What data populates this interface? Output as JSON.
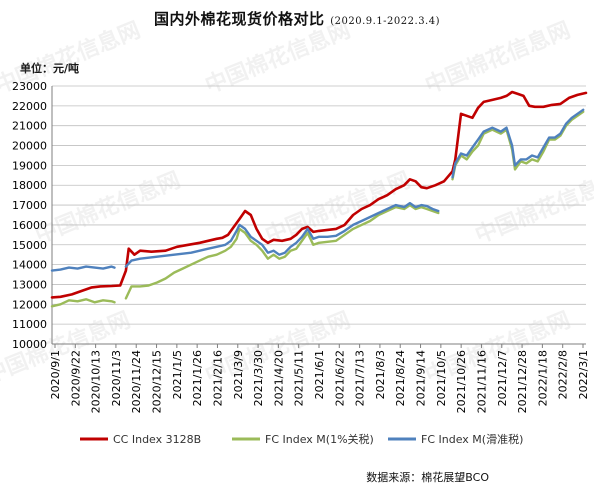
{
  "title": "国内外棉花现货价格对比",
  "title_range": "(2020.9.1-2022.3.4)",
  "unit_label": "单位：元/吨",
  "source": "数据来源：棉花展望BCO",
  "watermark_text": "中国棉花信息网",
  "colors": {
    "cc": "#c00000",
    "fc1": "#9bbb59",
    "fc2": "#4f81bd",
    "grid": "#bfbfbf"
  },
  "chart_data": {
    "type": "line",
    "title": "国内外棉花现货价格对比",
    "ylabel": "单位：元/吨",
    "ylim": [
      10000,
      23000
    ],
    "yticks": [
      10000,
      11000,
      12000,
      13000,
      14000,
      15000,
      16000,
      17000,
      18000,
      19000,
      20000,
      21000,
      22000,
      23000
    ],
    "ytick_labels": [
      "10000",
      "11000",
      "12000",
      "13000",
      "14000",
      "15000",
      "16000",
      "17000",
      "18000",
      "19000",
      "20000",
      "21000",
      "22000",
      "23000"
    ],
    "x_tick_labels": [
      "2020/9/1",
      "2020/9/22",
      "2020/10/13",
      "2020/11/3",
      "2020/11/24",
      "2020/12/15",
      "2021/1/5",
      "2021/1/26",
      "2021/2/16",
      "2021/3/9",
      "2021/3/30",
      "2021/4/20",
      "2021/5/11",
      "2021/6/1",
      "2021/6/22",
      "2021/7/13",
      "2021/8/3",
      "2021/8/24",
      "2021/9/14",
      "2021/10/5",
      "2021/10/26",
      "2021/11/16",
      "2021/12/7",
      "2021/12/28",
      "2022/1/18",
      "2022/2/8",
      "2022/3/1"
    ],
    "grid": true,
    "legend_position": "bottom",
    "series": [
      {
        "name": "CC Index 3128B",
        "points": [
          [
            0,
            12350
          ],
          [
            3,
            12380
          ],
          [
            7,
            12500
          ],
          [
            11,
            12700
          ],
          [
            14,
            12850
          ],
          [
            17,
            12900
          ],
          [
            21,
            12920
          ],
          [
            24,
            12950
          ],
          [
            26,
            13700
          ],
          [
            27,
            14800
          ],
          [
            29,
            14500
          ],
          [
            31,
            14700
          ],
          [
            35,
            14650
          ],
          [
            40,
            14700
          ],
          [
            44,
            14900
          ],
          [
            48,
            15000
          ],
          [
            52,
            15100
          ],
          [
            55,
            15200
          ],
          [
            58,
            15300
          ],
          [
            60,
            15350
          ],
          [
            62,
            15500
          ],
          [
            64,
            15900
          ],
          [
            66,
            16300
          ],
          [
            68,
            16700
          ],
          [
            70,
            16500
          ],
          [
            72,
            15800
          ],
          [
            74,
            15300
          ],
          [
            76,
            15100
          ],
          [
            78,
            15250
          ],
          [
            81,
            15200
          ],
          [
            84,
            15300
          ],
          [
            86,
            15500
          ],
          [
            88,
            15800
          ],
          [
            90,
            15900
          ],
          [
            92,
            15650
          ],
          [
            94,
            15700
          ],
          [
            97,
            15750
          ],
          [
            100,
            15800
          ],
          [
            103,
            16000
          ],
          [
            106,
            16500
          ],
          [
            109,
            16800
          ],
          [
            112,
            17000
          ],
          [
            115,
            17300
          ],
          [
            118,
            17500
          ],
          [
            121,
            17800
          ],
          [
            124,
            18000
          ],
          [
            126,
            18300
          ],
          [
            128,
            18200
          ],
          [
            130,
            17900
          ],
          [
            132,
            17850
          ],
          [
            135,
            18000
          ],
          [
            138,
            18200
          ],
          [
            141,
            18700
          ],
          [
            142,
            19300
          ],
          [
            144,
            21600
          ],
          [
            146,
            21500
          ],
          [
            148,
            21400
          ],
          [
            150,
            21900
          ],
          [
            152,
            22200
          ],
          [
            155,
            22300
          ],
          [
            158,
            22400
          ],
          [
            160,
            22500
          ],
          [
            162,
            22700
          ],
          [
            164,
            22600
          ],
          [
            166,
            22500
          ],
          [
            168,
            22000
          ],
          [
            170,
            21950
          ],
          [
            173,
            21950
          ],
          [
            176,
            22050
          ],
          [
            179,
            22100
          ],
          [
            182,
            22400
          ],
          [
            185,
            22550
          ],
          [
            188,
            22650
          ]
        ]
      },
      {
        "name": "FC Index M(1%关税)",
        "points": [
          [
            0,
            11900
          ],
          [
            3,
            12000
          ],
          [
            6,
            12200
          ],
          [
            9,
            12150
          ],
          [
            12,
            12250
          ],
          [
            15,
            12100
          ],
          [
            18,
            12200
          ],
          [
            21,
            12150
          ],
          [
            22,
            12100
          ],
          [
            26,
            12300
          ],
          [
            28,
            12900
          ],
          [
            31,
            12900
          ],
          [
            34,
            12950
          ],
          [
            37,
            13100
          ],
          [
            40,
            13300
          ],
          [
            43,
            13600
          ],
          [
            46,
            13800
          ],
          [
            49,
            14000
          ],
          [
            52,
            14200
          ],
          [
            55,
            14400
          ],
          [
            58,
            14500
          ],
          [
            61,
            14700
          ],
          [
            63,
            14900
          ],
          [
            65,
            15300
          ],
          [
            66,
            15800
          ],
          [
            68,
            15600
          ],
          [
            70,
            15200
          ],
          [
            72,
            15000
          ],
          [
            74,
            14700
          ],
          [
            76,
            14300
          ],
          [
            78,
            14500
          ],
          [
            80,
            14300
          ],
          [
            82,
            14400
          ],
          [
            84,
            14700
          ],
          [
            86,
            14800
          ],
          [
            88,
            15200
          ],
          [
            90,
            15600
          ],
          [
            92,
            15000
          ],
          [
            94,
            15100
          ],
          [
            97,
            15150
          ],
          [
            100,
            15200
          ],
          [
            103,
            15500
          ],
          [
            106,
            15800
          ],
          [
            109,
            16000
          ],
          [
            112,
            16200
          ],
          [
            115,
            16500
          ],
          [
            118,
            16700
          ],
          [
            121,
            16900
          ],
          [
            124,
            16800
          ],
          [
            126,
            17000
          ],
          [
            128,
            16800
          ],
          [
            130,
            16900
          ],
          [
            132,
            16800
          ],
          [
            134,
            16700
          ],
          [
            136,
            16600
          ],
          [
            141,
            18300
          ],
          [
            142,
            19000
          ],
          [
            144,
            19500
          ],
          [
            146,
            19300
          ],
          [
            148,
            19700
          ],
          [
            150,
            20000
          ],
          [
            152,
            20600
          ],
          [
            155,
            20800
          ],
          [
            158,
            20600
          ],
          [
            160,
            20800
          ],
          [
            162,
            19800
          ],
          [
            163,
            18800
          ],
          [
            165,
            19200
          ],
          [
            167,
            19100
          ],
          [
            169,
            19300
          ],
          [
            171,
            19200
          ],
          [
            173,
            19700
          ],
          [
            175,
            20300
          ],
          [
            177,
            20300
          ],
          [
            179,
            20500
          ],
          [
            181,
            21000
          ],
          [
            183,
            21300
          ],
          [
            185,
            21500
          ],
          [
            187,
            21700
          ]
        ]
      },
      {
        "name": "FC Index M(滑准税)",
        "points": [
          [
            0,
            13700
          ],
          [
            3,
            13750
          ],
          [
            6,
            13850
          ],
          [
            9,
            13800
          ],
          [
            12,
            13900
          ],
          [
            15,
            13850
          ],
          [
            18,
            13800
          ],
          [
            21,
            13900
          ],
          [
            22,
            13850
          ],
          [
            26,
            13900
          ],
          [
            28,
            14200
          ],
          [
            31,
            14300
          ],
          [
            34,
            14350
          ],
          [
            37,
            14400
          ],
          [
            40,
            14450
          ],
          [
            43,
            14500
          ],
          [
            46,
            14550
          ],
          [
            49,
            14600
          ],
          [
            52,
            14700
          ],
          [
            55,
            14800
          ],
          [
            58,
            14900
          ],
          [
            61,
            15000
          ],
          [
            63,
            15200
          ],
          [
            65,
            15700
          ],
          [
            66,
            16000
          ],
          [
            68,
            15800
          ],
          [
            70,
            15400
          ],
          [
            72,
            15200
          ],
          [
            74,
            15000
          ],
          [
            76,
            14600
          ],
          [
            78,
            14700
          ],
          [
            80,
            14500
          ],
          [
            82,
            14600
          ],
          [
            84,
            14900
          ],
          [
            86,
            15100
          ],
          [
            88,
            15400
          ],
          [
            90,
            15800
          ],
          [
            92,
            15300
          ],
          [
            94,
            15400
          ],
          [
            97,
            15400
          ],
          [
            100,
            15450
          ],
          [
            103,
            15700
          ],
          [
            106,
            16000
          ],
          [
            109,
            16200
          ],
          [
            112,
            16400
          ],
          [
            115,
            16600
          ],
          [
            118,
            16800
          ],
          [
            121,
            17000
          ],
          [
            124,
            16900
          ],
          [
            126,
            17100
          ],
          [
            128,
            16900
          ],
          [
            130,
            17000
          ],
          [
            132,
            16950
          ],
          [
            134,
            16800
          ],
          [
            136,
            16700
          ],
          [
            141,
            18400
          ],
          [
            142,
            19100
          ],
          [
            144,
            19600
          ],
          [
            146,
            19500
          ],
          [
            148,
            19900
          ],
          [
            150,
            20300
          ],
          [
            152,
            20700
          ],
          [
            155,
            20900
          ],
          [
            158,
            20700
          ],
          [
            160,
            20900
          ],
          [
            162,
            20000
          ],
          [
            163,
            19000
          ],
          [
            165,
            19300
          ],
          [
            167,
            19300
          ],
          [
            169,
            19500
          ],
          [
            171,
            19400
          ],
          [
            173,
            19900
          ],
          [
            175,
            20400
          ],
          [
            177,
            20400
          ],
          [
            179,
            20600
          ],
          [
            181,
            21100
          ],
          [
            183,
            21400
          ],
          [
            185,
            21600
          ],
          [
            187,
            21800
          ]
        ]
      }
    ]
  }
}
